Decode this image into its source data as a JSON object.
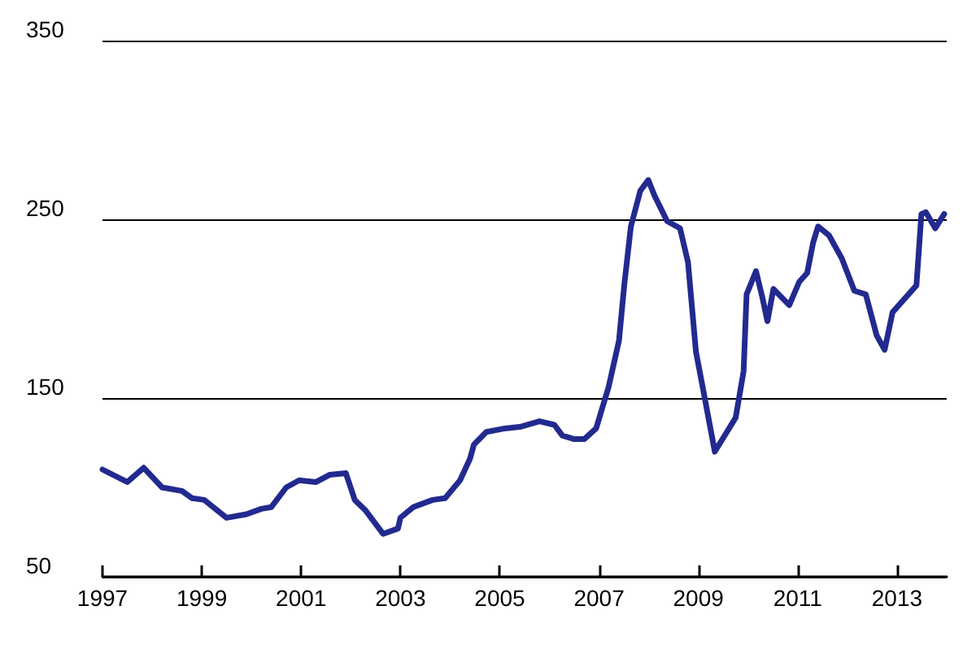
{
  "chart_data": {
    "type": "line",
    "xlim": [
      1997,
      2014
    ],
    "xticks": [
      1997,
      1999,
      2001,
      2003,
      2005,
      2007,
      2009,
      2011,
      2013
    ],
    "ylim": [
      50,
      350
    ],
    "yticks": [
      50,
      150,
      250,
      350
    ],
    "grid": "y",
    "marker": "none",
    "line_style": "solid",
    "series": [
      {
        "color": "#232a8f",
        "x": [
          1997.0,
          1997.5,
          1997.83,
          1998.2,
          1998.6,
          1998.8,
          1999.05,
          1999.5,
          1999.9,
          2000.2,
          2000.4,
          2000.7,
          2000.96,
          2001.3,
          2001.57,
          2001.9,
          2002.08,
          2002.3,
          2002.65,
          2002.95,
          2003.0,
          2003.26,
          2003.65,
          2003.9,
          2004.2,
          2004.4,
          2004.48,
          2004.73,
          2005.1,
          2005.43,
          2005.8,
          2006.1,
          2006.26,
          2006.5,
          2006.7,
          2006.94,
          2007.19,
          2007.4,
          2007.51,
          2007.64,
          2007.83,
          2007.99,
          2008.12,
          2008.37,
          2008.63,
          2008.79,
          2008.95,
          2009.1,
          2009.33,
          2009.75,
          2009.91,
          2009.97,
          2010.16,
          2010.29,
          2010.39,
          2010.51,
          2010.83,
          2011.03,
          2011.19,
          2011.31,
          2011.41,
          2011.63,
          2011.89,
          2012.14,
          2012.37,
          2012.59,
          2012.75,
          2012.91,
          2013.39,
          2013.49,
          2013.58,
          2013.77,
          2013.95
        ],
        "values": [
          110,
          103,
          111,
          100,
          98,
          94,
          93,
          83,
          85,
          88,
          89,
          100,
          104,
          103,
          107,
          108,
          93,
          87,
          74,
          77,
          83,
          89,
          93,
          94,
          104,
          116,
          124,
          131,
          133,
          134,
          137,
          135,
          129,
          127,
          127,
          133,
          156,
          182,
          214,
          246,
          266,
          272,
          263,
          249,
          245,
          226,
          176,
          154,
          120,
          139,
          165,
          208,
          221,
          206,
          193,
          211,
          202,
          215,
          220,
          237,
          246,
          241,
          228,
          210,
          208,
          185,
          177,
          198,
          213,
          253,
          254,
          245,
          253
        ]
      }
    ]
  }
}
